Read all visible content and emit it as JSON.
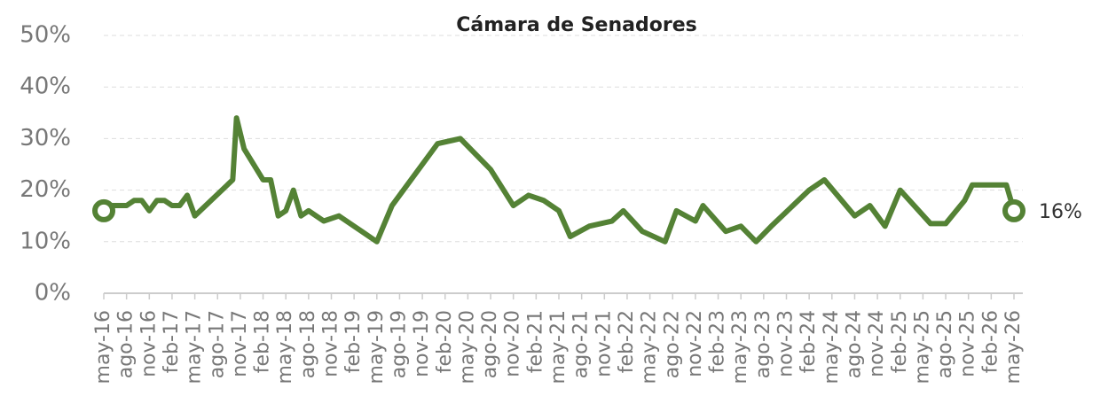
{
  "chart_data": {
    "type": "line",
    "title": "Cámara de Senadores",
    "color": "#548235",
    "grid": true,
    "x": [
      0,
      1,
      3,
      4,
      5,
      6,
      7,
      8,
      9,
      10,
      11,
      12,
      17,
      17.5,
      18.5,
      21,
      22,
      23,
      24,
      25,
      26,
      27,
      29,
      31,
      34,
      36,
      38,
      44,
      47,
      51,
      54,
      56,
      58,
      60,
      61.5,
      64,
      67,
      68.5,
      71,
      74,
      75.5,
      78,
      79,
      82,
      84,
      86,
      88,
      93,
      95,
      99,
      101,
      103,
      105,
      109,
      111,
      113.5,
      114.5,
      116,
      119,
      120
    ],
    "values": [
      16,
      17,
      17,
      18,
      18,
      16,
      18,
      18,
      17,
      17,
      19,
      15,
      22,
      34,
      28,
      22,
      22,
      15,
      16,
      20,
      15,
      16,
      14,
      15,
      12,
      10,
      17,
      29,
      30,
      24,
      17,
      19,
      18,
      16,
      11,
      13,
      14,
      16,
      12,
      10,
      16,
      14,
      17,
      12,
      13,
      10,
      13,
      20,
      22,
      15,
      17,
      13,
      20,
      13.5,
      13.5,
      18,
      21,
      21,
      21,
      16
    ],
    "value_labels": [
      null,
      null,
      null,
      null,
      null,
      null,
      null,
      null,
      null,
      null,
      null,
      null,
      null,
      null,
      null,
      null,
      null,
      null,
      null,
      null,
      null,
      null,
      null,
      null,
      null,
      null,
      null,
      null,
      null,
      null,
      null,
      null,
      null,
      null,
      null,
      null,
      null,
      null,
      null,
      null,
      null,
      null,
      null,
      null,
      null,
      null,
      null,
      null,
      null,
      null,
      null,
      null,
      null,
      null,
      null,
      null,
      null,
      null,
      null,
      "16%"
    ],
    "xlim": [
      0,
      120
    ],
    "xticks": [
      {
        "value": 0,
        "label": "may-16"
      },
      {
        "value": 3,
        "label": "ago-16"
      },
      {
        "value": 6,
        "label": "nov-16"
      },
      {
        "value": 9,
        "label": "feb-17"
      },
      {
        "value": 12,
        "label": "may-17"
      },
      {
        "value": 15,
        "label": "ago-17"
      },
      {
        "value": 18,
        "label": "nov-17"
      },
      {
        "value": 21,
        "label": "feb-18"
      },
      {
        "value": 24,
        "label": "may-18"
      },
      {
        "value": 27,
        "label": "ago-18"
      },
      {
        "value": 30,
        "label": "nov-18"
      },
      {
        "value": 33,
        "label": "feb-19"
      },
      {
        "value": 36,
        "label": "may-19"
      },
      {
        "value": 39,
        "label": "ago-19"
      },
      {
        "value": 42,
        "label": "nov-19"
      },
      {
        "value": 45,
        "label": "feb-20"
      },
      {
        "value": 48,
        "label": "may-20"
      },
      {
        "value": 51,
        "label": "ago-20"
      },
      {
        "value": 54,
        "label": "nov-20"
      },
      {
        "value": 57,
        "label": "feb-21"
      },
      {
        "value": 60,
        "label": "may-21"
      },
      {
        "value": 63,
        "label": "ago-21"
      },
      {
        "value": 66,
        "label": "nov-21"
      },
      {
        "value": 69,
        "label": "feb-22"
      },
      {
        "value": 72,
        "label": "may-22"
      },
      {
        "value": 75,
        "label": "ago-22"
      },
      {
        "value": 78,
        "label": "nov-22"
      },
      {
        "value": 81,
        "label": "feb-23"
      },
      {
        "value": 84,
        "label": "may-23"
      },
      {
        "value": 87,
        "label": "ago-23"
      },
      {
        "value": 90,
        "label": "nov-23"
      },
      {
        "value": 93,
        "label": "feb-24"
      },
      {
        "value": 96,
        "label": "may-24"
      },
      {
        "value": 99,
        "label": "ago-24"
      },
      {
        "value": 102,
        "label": "nov-24"
      },
      {
        "value": 105,
        "label": "feb-25"
      },
      {
        "value": 108,
        "label": "may-25"
      },
      {
        "value": 111,
        "label": "ago-25"
      },
      {
        "value": 114,
        "label": "nov-25"
      },
      {
        "value": 117,
        "label": "feb-26"
      },
      {
        "value": 120,
        "label": "may-26"
      }
    ],
    "ylim": [
      0,
      50
    ],
    "yticks": [
      {
        "value": 0,
        "label": "0%"
      },
      {
        "value": 10,
        "label": "10%"
      },
      {
        "value": 20,
        "label": "20%"
      },
      {
        "value": 30,
        "label": "30%"
      },
      {
        "value": 40,
        "label": "40%"
      },
      {
        "value": 50,
        "label": "50%"
      }
    ]
  }
}
